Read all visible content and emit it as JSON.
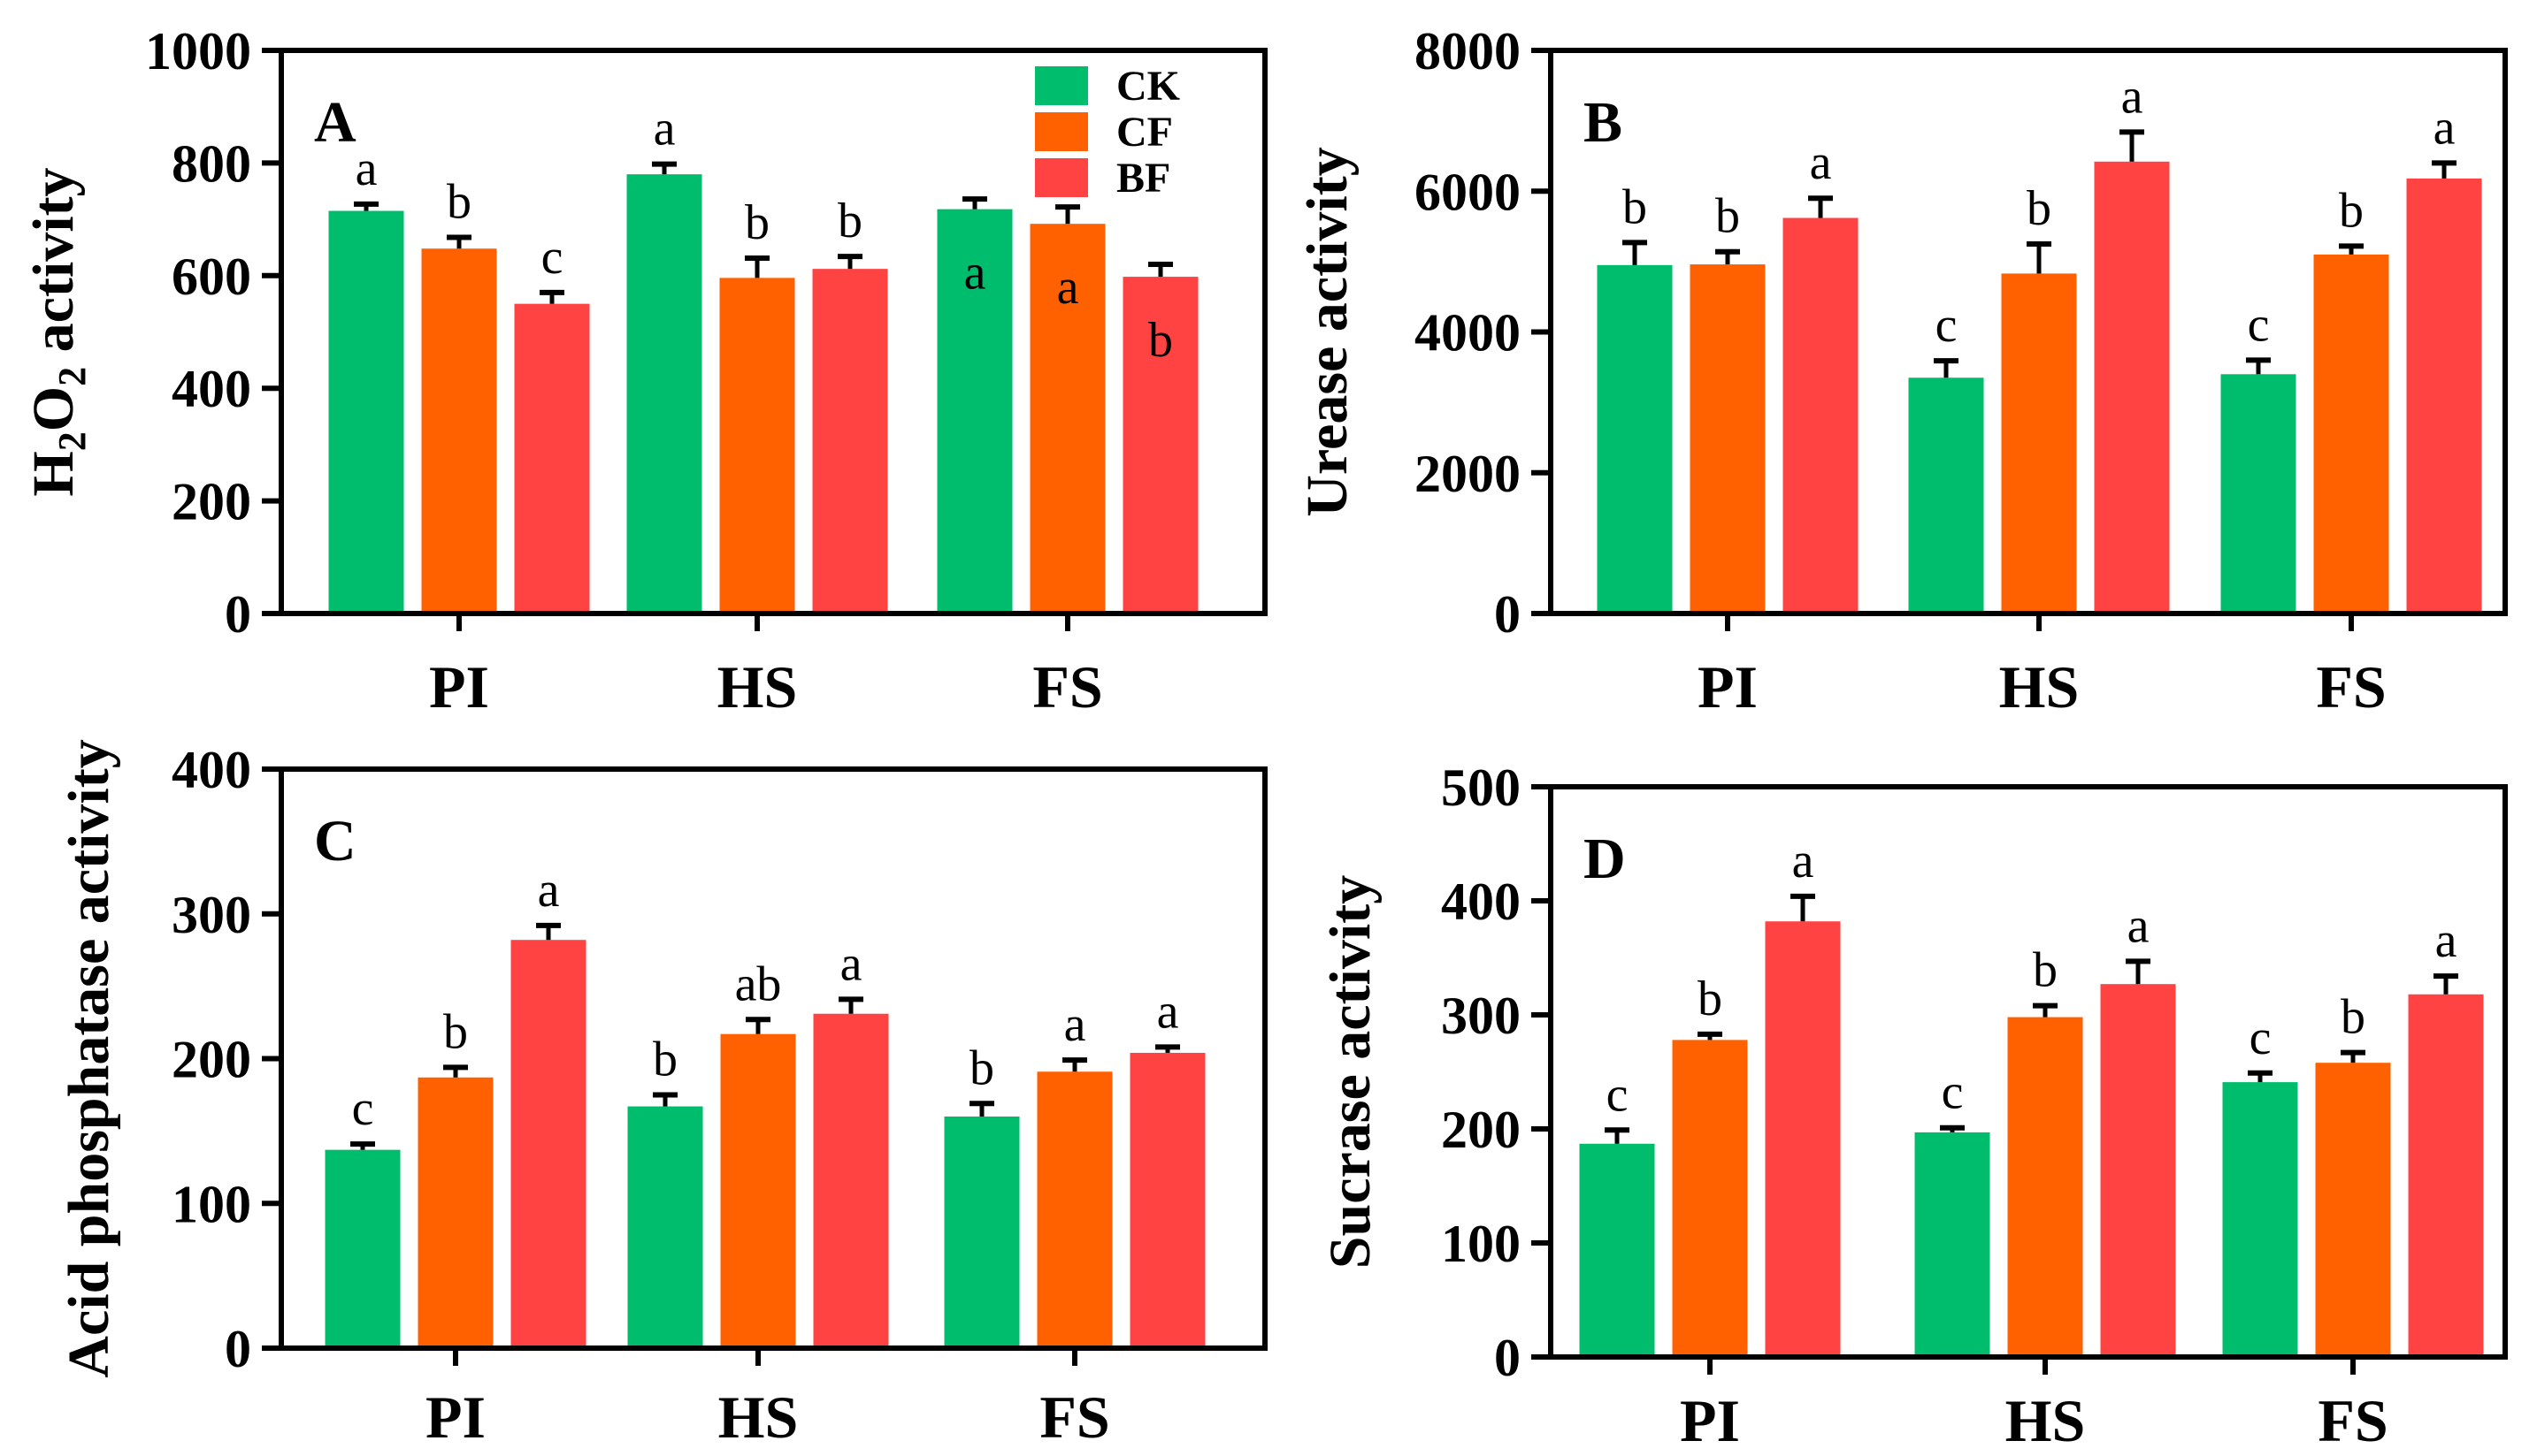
{
  "colors": {
    "CK": "#00BD6E",
    "CF": "#FF6100",
    "BF": "#FF4242",
    "axis": "#000000"
  },
  "legend": [
    {
      "key": "CK",
      "label": "CK"
    },
    {
      "key": "CF",
      "label": "CF"
    },
    {
      "key": "BF",
      "label": "BF"
    }
  ],
  "chart_data": [
    {
      "type": "bar",
      "panel": "A",
      "ylabel": "H2O2 activity",
      "ylabel_parts": {
        "main": "H",
        "sub1": "2",
        "mid": "O",
        "sub2": "2",
        "tail": " activity"
      },
      "ylim": [
        0,
        1000
      ],
      "yticks": [
        0,
        200,
        400,
        600,
        800,
        1000
      ],
      "categories": [
        "PI",
        "HS",
        "FS"
      ],
      "series": [
        {
          "name": "CK",
          "values": [
            715,
            780,
            718
          ],
          "errors": [
            12,
            18,
            18
          ],
          "labels": [
            "a",
            "a",
            "a"
          ],
          "label_inside": [
            false,
            false,
            true
          ]
        },
        {
          "name": "CF",
          "values": [
            648,
            596,
            692
          ],
          "errors": [
            20,
            35,
            30
          ],
          "labels": [
            "b",
            "b",
            "a"
          ],
          "label_inside": [
            false,
            false,
            true
          ]
        },
        {
          "name": "BF",
          "values": [
            550,
            612,
            598
          ],
          "errors": [
            20,
            22,
            22
          ],
          "labels": [
            "c",
            "b",
            "b"
          ],
          "label_inside": [
            false,
            false,
            true
          ]
        }
      ],
      "show_legend": true
    },
    {
      "type": "bar",
      "panel": "B",
      "ylabel": "Urease activity",
      "ylim": [
        0,
        8000
      ],
      "yticks": [
        0,
        2000,
        4000,
        6000,
        8000
      ],
      "categories": [
        "PI",
        "HS",
        "FS"
      ],
      "series": [
        {
          "name": "CK",
          "values": [
            4950,
            3350,
            3400
          ],
          "errors": [
            320,
            240,
            200
          ],
          "labels": [
            "b",
            "c",
            "c"
          ]
        },
        {
          "name": "CF",
          "values": [
            4960,
            4830,
            5100
          ],
          "errors": [
            180,
            420,
            120
          ],
          "labels": [
            "b",
            "b",
            "b"
          ]
        },
        {
          "name": "BF",
          "values": [
            5620,
            6420,
            6180
          ],
          "errors": [
            280,
            420,
            220
          ],
          "labels": [
            "a",
            "a",
            "a"
          ]
        }
      ],
      "show_legend": false
    },
    {
      "type": "bar",
      "panel": "C",
      "ylabel": "Acid phosphatase activity",
      "ylim": [
        0,
        400
      ],
      "yticks": [
        0,
        100,
        200,
        300,
        400
      ],
      "categories": [
        "PI",
        "HS",
        "FS"
      ],
      "series": [
        {
          "name": "CK",
          "values": [
            137,
            167,
            160
          ],
          "errors": [
            4,
            8,
            9
          ],
          "labels": [
            "c",
            "b",
            "b"
          ]
        },
        {
          "name": "CF",
          "values": [
            187,
            217,
            191
          ],
          "errors": [
            7,
            10,
            8
          ],
          "labels": [
            "b",
            "ab",
            "a"
          ]
        },
        {
          "name": "BF",
          "values": [
            282,
            231,
            204
          ],
          "errors": [
            10,
            10,
            4
          ],
          "labels": [
            "a",
            "a",
            "a"
          ]
        }
      ],
      "show_legend": false
    },
    {
      "type": "bar",
      "panel": "D",
      "ylabel": "Sucrase activity",
      "ylim": [
        0,
        500
      ],
      "yticks": [
        0,
        100,
        200,
        300,
        400,
        500
      ],
      "categories": [
        "PI",
        "HS",
        "FS"
      ],
      "series": [
        {
          "name": "CK",
          "values": [
            187,
            197,
            241
          ],
          "errors": [
            12,
            4,
            8
          ],
          "labels": [
            "c",
            "c",
            "c"
          ]
        },
        {
          "name": "CF",
          "values": [
            278,
            298,
            258
          ],
          "errors": [
            5,
            10,
            9
          ],
          "labels": [
            "b",
            "b",
            "b"
          ]
        },
        {
          "name": "BF",
          "values": [
            382,
            327,
            318
          ],
          "errors": [
            22,
            20,
            16
          ],
          "labels": [
            "a",
            "a",
            "a"
          ]
        }
      ],
      "show_legend": false
    }
  ]
}
